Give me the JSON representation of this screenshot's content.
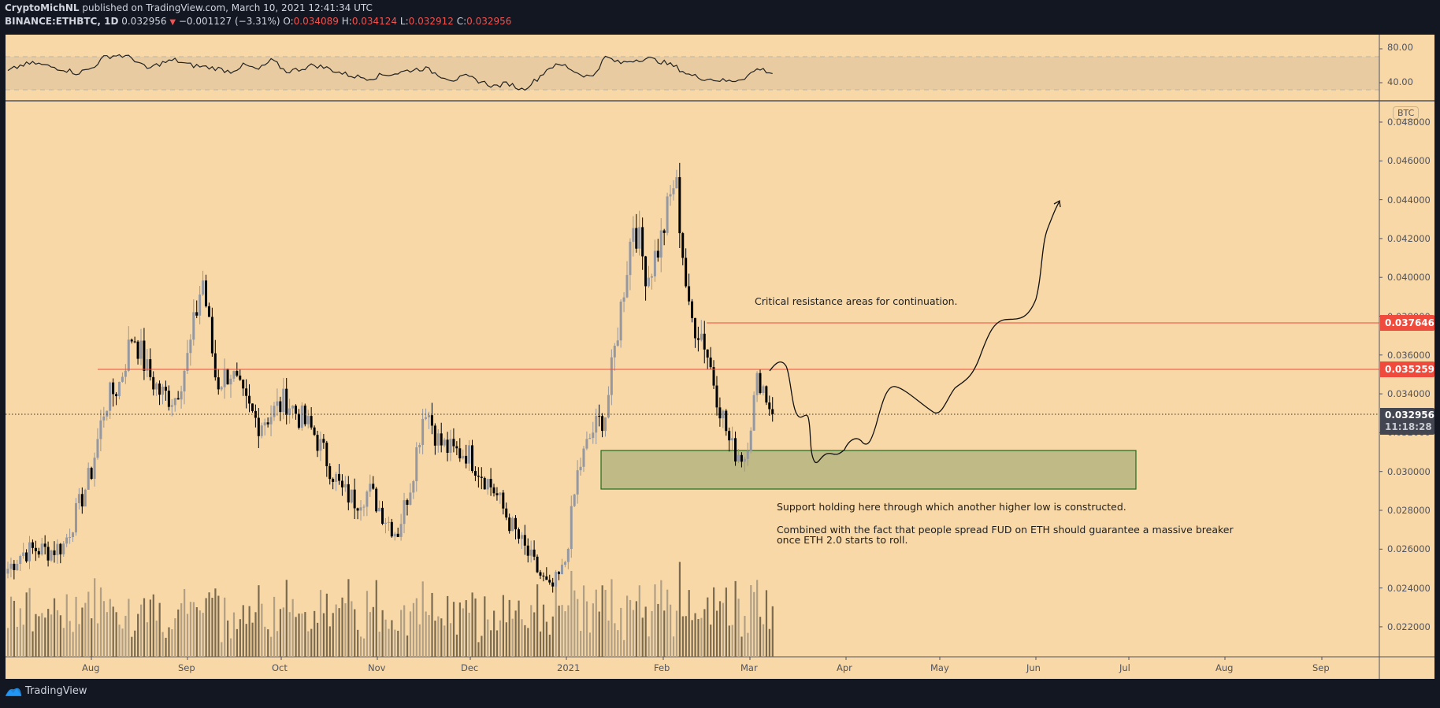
{
  "header": {
    "author": "CryptoMichNL",
    "published_text": " published on TradingView.com, March 10, 2021 12:41:34 UTC",
    "symbol": "BINANCE:ETHBTC, 1D",
    "last": "0.032956",
    "change": "−0.001127 (−3.31%)",
    "open_label": "O:",
    "open": "0.034089",
    "high_label": "H:",
    "high": "0.034124",
    "low_label": "L:",
    "low": "0.032912",
    "close_label": "C:",
    "close": "0.032956"
  },
  "footer": {
    "brand": "TradingView",
    "icon": "tradingview-logo-icon"
  },
  "colors": {
    "background": "#f8d8a6",
    "frame": "#131722",
    "up_candle": "#9598a1",
    "down_candle": "#000000",
    "volume_up": "#b09f85",
    "volume_down": "#7a6a4f",
    "resistance_line": "#ef4a3c",
    "support_box_fill": "#c0ba86",
    "support_box_border": "#1e6b1e",
    "last_price_tag": "#434651"
  },
  "price_axis": {
    "currency_badge": "BTC",
    "ticks": [
      "0.048000",
      "0.046000",
      "0.044000",
      "0.042000",
      "0.040000",
      "0.038000",
      "0.036000",
      "0.034000",
      "0.032000",
      "0.030000",
      "0.028000",
      "0.026000",
      "0.024000",
      "0.022000"
    ],
    "tags": [
      {
        "label": "0.037646",
        "kind": "resistance"
      },
      {
        "label": "0.035259",
        "kind": "resistance"
      }
    ],
    "last_tag": {
      "price": "0.032956",
      "countdown": "11:18:28"
    }
  },
  "rsi_axis": {
    "ticks": [
      "80.00",
      "40.00"
    ]
  },
  "time_axis": {
    "labels": [
      "Aug",
      "Sep",
      "Oct",
      "Nov",
      "Dec",
      "2021",
      "Feb",
      "Mar",
      "Apr",
      "May",
      "Jun",
      "Jul",
      "Aug",
      "Sep"
    ]
  },
  "annotations": {
    "resistance_note": "Critical resistance areas for continuation.",
    "support_note": "Support holding here through which another higher low is constructed.",
    "breaker_note": "Combined with the fact that people spread FUD on ETH should guarantee a massive breaker\nonce ETH 2.0 starts to roll."
  },
  "chart_data": {
    "type": "candlestick",
    "title": "BINANCE:ETHBTC, 1D",
    "xlabel": "",
    "ylabel": "BTC",
    "ylim": [
      0.0205,
      0.049
    ],
    "x_range": [
      "2020-07-06",
      "2021-09-15"
    ],
    "grid": false,
    "last_price": 0.032956,
    "resistance_levels": [
      0.037646,
      0.035259
    ],
    "support_zone": [
      0.0291,
      0.0311
    ],
    "rsi_band": [
      30,
      70
    ],
    "rsi_ticks": [
      80,
      40
    ],
    "closes_weekly_approx": [
      0.025,
      0.0258,
      0.026,
      0.0259,
      0.0262,
      0.028,
      0.03,
      0.0335,
      0.0345,
      0.0372,
      0.0352,
      0.034,
      0.0338,
      0.036,
      0.04,
      0.0345,
      0.0352,
      0.0335,
      0.0325,
      0.033,
      0.0337,
      0.0328,
      0.032,
      0.0305,
      0.029,
      0.0285,
      0.029,
      0.0278,
      0.0268,
      0.0295,
      0.0335,
      0.0315,
      0.031,
      0.031,
      0.03,
      0.029,
      0.0275,
      0.0262,
      0.025,
      0.0238,
      0.025,
      0.03,
      0.032,
      0.033,
      0.038,
      0.043,
      0.04,
      0.042,
      0.0452,
      0.038,
      0.037,
      0.034,
      0.0312,
      0.0308,
      0.035,
      0.033
    ],
    "projection_path_note": "hand-drawn projection from 0.0330 down to ~0.0302 then up past 0.0376 toward ~0.0440 by early June 2021",
    "rsi_series_approx": [
      52,
      60,
      62,
      58,
      55,
      50,
      56,
      70,
      72,
      68,
      55,
      62,
      66,
      60,
      58,
      56,
      52,
      60,
      54,
      66,
      52,
      55,
      60,
      56,
      50,
      46,
      44,
      48,
      50,
      54,
      56,
      48,
      42,
      46,
      40,
      34,
      38,
      30,
      42,
      58,
      60,
      50,
      45,
      70,
      62,
      66,
      68,
      64,
      58,
      48,
      44,
      42,
      40,
      45,
      56,
      50
    ]
  }
}
